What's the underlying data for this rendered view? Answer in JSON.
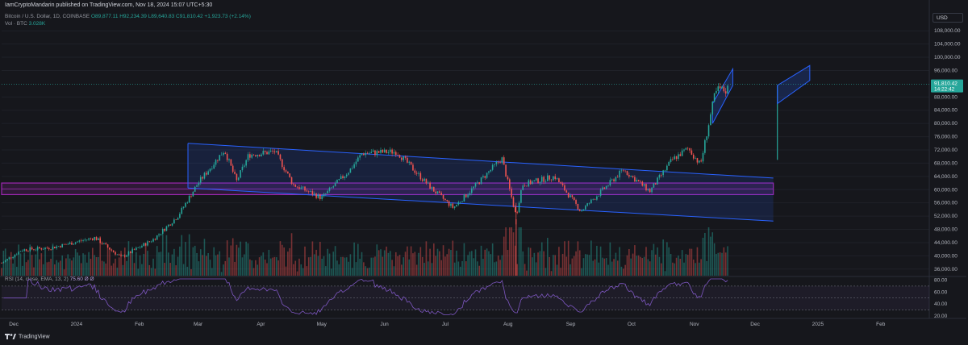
{
  "header": {
    "author": "IamCryptoMandarin",
    "publish_text": "published on TradingView.com, Nov 18, 2024 15:07 UTC+5:30"
  },
  "legend": {
    "symbol": "Bitcoin / U.S. Dollar, 1D, COINBASE",
    "ohlc": "O89,877.11 H92,234.39 L89,640.83 C91,810.42 +1,923.73 (+2.14%)",
    "volume_label": "Vol · BTC",
    "volume_value": "3.028K",
    "rsi_label": "RSI (14, close, EMA, 13, 2)",
    "rsi_value": "75.60 Ø Ø"
  },
  "currency": "USD",
  "brand": "TradingView",
  "colors": {
    "background": "#16171c",
    "up": "#26a69a",
    "down": "#ef5350",
    "channel": "#2962ff",
    "support_zone": "#9c27b0",
    "rsi": "#7e57c2",
    "price_label": "#26a69a"
  },
  "chart_data": {
    "type": "candlestick",
    "x_ticks": [
      "Dec",
      "2024",
      "Feb",
      "Mar",
      "Apr",
      "May",
      "Jun",
      "Jul",
      "Aug",
      "Sep",
      "Oct",
      "Nov",
      "Dec",
      "2025",
      "Feb"
    ],
    "y_ticks": [
      "108,000.00",
      "104,000.00",
      "100,000.00",
      "96,000.00",
      "88,000.00",
      "84,000.00",
      "80,000.00",
      "76,000.00",
      "72,000.00",
      "68,000.00",
      "64,000.00",
      "60,000.00",
      "56,000.00",
      "52,000.00",
      "48,000.00",
      "44,000.00",
      "40,000.00",
      "36,000.00"
    ],
    "ylim": [
      34000,
      110000
    ],
    "last_price": "91,810.42",
    "countdown": "14:22:42",
    "price_path": [
      [
        "2023-11-25",
        37800
      ],
      [
        "2023-12-05",
        41800
      ],
      [
        "2023-12-20",
        42500
      ],
      [
        "2024-01-10",
        45500
      ],
      [
        "2024-01-23",
        39500
      ],
      [
        "2024-02-08",
        45000
      ],
      [
        "2024-02-20",
        52000
      ],
      [
        "2024-03-01",
        62000
      ],
      [
        "2024-03-14",
        72000
      ],
      [
        "2024-03-20",
        62500
      ],
      [
        "2024-03-26",
        70500
      ],
      [
        "2024-04-08",
        71500
      ],
      [
        "2024-04-17",
        61500
      ],
      [
        "2024-05-01",
        57500
      ],
      [
        "2024-05-15",
        66000
      ],
      [
        "2024-05-21",
        71000
      ],
      [
        "2024-06-07",
        71500
      ],
      [
        "2024-06-24",
        60500
      ],
      [
        "2024-07-05",
        54500
      ],
      [
        "2024-07-14",
        60000
      ],
      [
        "2024-07-29",
        69500
      ],
      [
        "2024-08-05",
        52000
      ],
      [
        "2024-08-08",
        61500
      ],
      [
        "2024-08-24",
        64000
      ],
      [
        "2024-09-06",
        53500
      ],
      [
        "2024-09-27",
        66000
      ],
      [
        "2024-10-10",
        59500
      ],
      [
        "2024-10-21",
        69000
      ],
      [
        "2024-10-29",
        72500
      ],
      [
        "2024-11-04",
        67500
      ],
      [
        "2024-11-11",
        88500
      ],
      [
        "2024-11-13",
        90500
      ],
      [
        "2024-11-17",
        89800
      ],
      [
        "2024-11-18",
        91810
      ]
    ],
    "rsi_levels": [
      "80.00",
      "60.00",
      "40.00",
      "20.00"
    ],
    "rsi_ylim": [
      20,
      82
    ],
    "rsi_band": [
      30,
      70
    ],
    "channel": {
      "upper": [
        [
          "2024-02-25",
          74000
        ],
        [
          "2024-12-10",
          63500
        ]
      ],
      "lower": [
        [
          "2024-02-25",
          60500
        ],
        [
          "2024-12-10",
          50500
        ]
      ]
    },
    "support_zone": [
      58500,
      62000
    ],
    "upper_flag_channel": {
      "upper": [
        [
          "2024-11-10",
          86000
        ],
        [
          "2024-11-20",
          96500
        ]
      ],
      "lower": [
        [
          "2024-11-10",
          80000
        ],
        [
          "2024-11-20",
          91500
        ]
      ]
    },
    "projection": {
      "pole": [
        [
          "2024-12-12",
          69000
        ],
        [
          "2024-12-12",
          91500
        ]
      ],
      "upper": [
        [
          "2024-12-12",
          91500
        ],
        [
          "2024-12-28",
          97500
        ]
      ],
      "lower": [
        [
          "2024-12-12",
          86000
        ],
        [
          "2024-12-28",
          93000
        ]
      ]
    }
  }
}
